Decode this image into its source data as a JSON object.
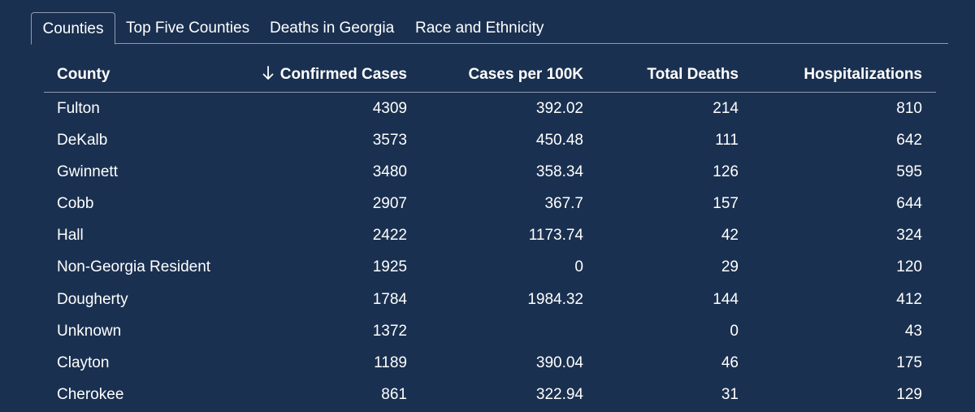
{
  "tabs": [
    {
      "label": "Counties",
      "active": true
    },
    {
      "label": "Top Five Counties",
      "active": false
    },
    {
      "label": "Deaths in Georgia",
      "active": false
    },
    {
      "label": "Race and Ethnicity",
      "active": false
    }
  ],
  "table": {
    "headers": [
      "County",
      "Confirmed Cases",
      "Cases per 100K",
      "Total Deaths",
      "Hospitalizations"
    ],
    "sort": {
      "column": "Confirmed Cases",
      "direction": "descending",
      "icon": "arrow-down-icon"
    },
    "rows": [
      [
        "Fulton",
        "4309",
        "392.02",
        "214",
        "810"
      ],
      [
        "DeKalb",
        "3573",
        "450.48",
        "111",
        "642"
      ],
      [
        "Gwinnett",
        "3480",
        "358.34",
        "126",
        "595"
      ],
      [
        "Cobb",
        "2907",
        "367.7",
        "157",
        "644"
      ],
      [
        "Hall",
        "2422",
        "1173.74",
        "42",
        "324"
      ],
      [
        "Non-Georgia Resident",
        "1925",
        "0",
        "29",
        "120"
      ],
      [
        "Dougherty",
        "1784",
        "1984.32",
        "144",
        "412"
      ],
      [
        "Unknown",
        "1372",
        "",
        "0",
        "43"
      ],
      [
        "Clayton",
        "1189",
        "390.04",
        "46",
        "175"
      ],
      [
        "Cherokee",
        "861",
        "322.94",
        "31",
        "129"
      ]
    ]
  },
  "colors": {
    "background": "#1a3050",
    "text": "#ffffff",
    "divider": "#8e9cb0"
  }
}
